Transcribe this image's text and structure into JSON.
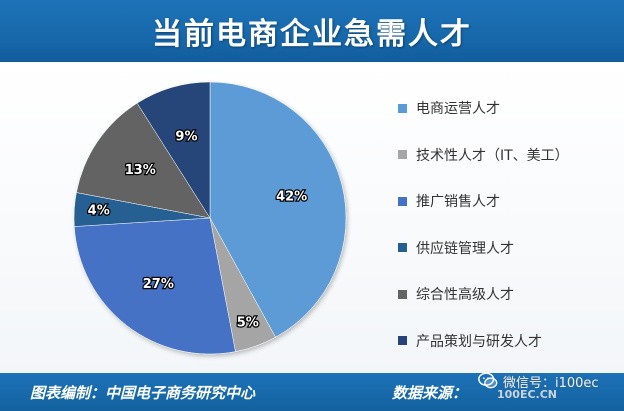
{
  "header": {
    "title": "当前电商企业急需人才"
  },
  "footer": {
    "left_text": "图表编制：中国电子商务研究中心",
    "right_text": "数据来源："
  },
  "watermark": {
    "text": "微信号：i100ec",
    "sub_text": "100EC.CN",
    "icon": "wechat-icon"
  },
  "colors": {
    "header_bg": "#1768ab",
    "footer_bg": "#1768ab",
    "label_text": "#ffffff"
  },
  "chart_data": {
    "type": "pie",
    "title": "当前电商企业急需人才",
    "legend_position": "right",
    "slices": [
      {
        "label": "电商运营人才",
        "value": 42,
        "display": "42%",
        "color": "#5b9bd5"
      },
      {
        "label": "技术性人才（IT、美工）",
        "value": 5,
        "display": "5%",
        "color": "#a5a5a5"
      },
      {
        "label": "推广销售人才",
        "value": 27,
        "display": "27%",
        "color": "#4472c4"
      },
      {
        "label": "供应链管理人才",
        "value": 4,
        "display": "4%",
        "color": "#255e91"
      },
      {
        "label": "综合性高级人才",
        "value": 13,
        "display": "13%",
        "color": "#636363"
      },
      {
        "label": "产品策划与研发人才",
        "value": 9,
        "display": "9%",
        "color": "#264478"
      }
    ]
  }
}
